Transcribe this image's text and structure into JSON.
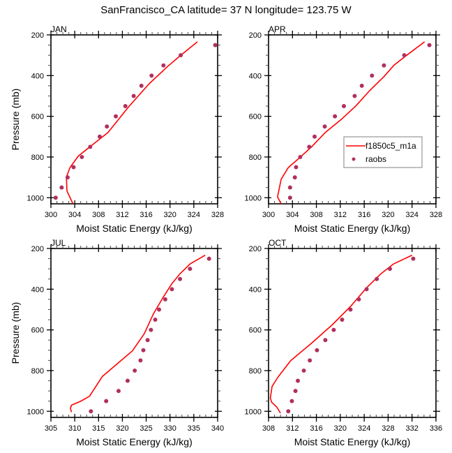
{
  "title": "SanFrancisco_CA  latitude= 37 N longitude= 123.75 W",
  "colors": {
    "model": "#ff0000",
    "obs": "#b03060",
    "frame": "#000000",
    "legend_border": "#808080"
  },
  "chart_data": [
    {
      "type": "line",
      "panel": "JAN",
      "title": "JAN",
      "xlabel": "Moist Static Energy (kJ/kg)",
      "ylabel": "Pressure (mb)",
      "xlim": [
        300,
        328
      ],
      "ylim": [
        1030,
        200
      ],
      "y_reversed": true,
      "xticks": [
        300,
        304,
        308,
        312,
        316,
        320,
        324,
        328
      ],
      "yticks": [
        200,
        400,
        600,
        800,
        1000
      ],
      "legend": null,
      "series": [
        {
          "name": "f1850c5_m1a",
          "kind": "line",
          "x": [
            324.6,
            321.8,
            319.6,
            316.5,
            313.0,
            309.6,
            304.6,
            303.2,
            302.6,
            302.7,
            303.7
          ],
          "y": [
            234,
            300,
            355,
            440,
            555,
            679,
            795,
            852,
            898,
            967,
            1030
          ]
        },
        {
          "name": "raobs",
          "kind": "markers",
          "x": [
            327.6,
            321.8,
            318.9,
            316.9,
            315.2,
            313.9,
            312.5,
            310.9,
            309.4,
            308.2,
            306.6,
            305.2,
            303.8,
            302.8,
            301.8,
            300.8
          ],
          "y": [
            250,
            300,
            350,
            400,
            450,
            500,
            550,
            600,
            650,
            700,
            750,
            800,
            850,
            900,
            950,
            1000
          ]
        }
      ]
    },
    {
      "type": "line",
      "panel": "APR",
      "title": "APR",
      "xlabel": "Moist Static Energy (kJ/kg)",
      "ylabel": "",
      "xlim": [
        300,
        328
      ],
      "ylim": [
        1030,
        200
      ],
      "y_reversed": true,
      "xticks": [
        300,
        304,
        308,
        312,
        316,
        320,
        324,
        328
      ],
      "yticks": [
        200,
        400,
        600,
        800,
        1000
      ],
      "legend": {
        "placement": "center-right",
        "entries": [
          "f1850c5_m1a",
          "raobs"
        ]
      },
      "series": [
        {
          "name": "f1850c5_m1a",
          "kind": "line",
          "x": [
            326.1,
            323.1,
            321.0,
            319.3,
            316.9,
            314.6,
            312.3,
            309.5,
            307.2,
            305.3,
            303.3,
            302.1,
            301.5,
            302.1
          ],
          "y": [
            234,
            300,
            348,
            405,
            474,
            549,
            612,
            679,
            750,
            801,
            852,
            910,
            996,
            1030
          ]
        },
        {
          "name": "raobs",
          "kind": "markers",
          "x": [
            326.9,
            322.7,
            319.3,
            317.3,
            315.6,
            314.4,
            312.6,
            311.1,
            309.4,
            307.7,
            306.8,
            305.3,
            304.6,
            304.4,
            303.6,
            303.6
          ],
          "y": [
            250,
            300,
            350,
            400,
            450,
            500,
            550,
            600,
            650,
            700,
            750,
            800,
            850,
            900,
            950,
            1000
          ]
        }
      ]
    },
    {
      "type": "line",
      "panel": "JUL",
      "title": "JUL",
      "xlabel": "Moist Static Energy (kJ/kg)",
      "ylabel": "Pressure (mb)",
      "xlim": [
        305,
        340
      ],
      "ylim": [
        1030,
        200
      ],
      "y_reversed": true,
      "xticks": [
        305,
        310,
        315,
        320,
        325,
        330,
        335,
        340
      ],
      "yticks": [
        200,
        400,
        600,
        800,
        1000
      ],
      "legend": null,
      "series": [
        {
          "name": "f1850c5_m1a",
          "kind": "line",
          "x": [
            337.4,
            334.2,
            332.1,
            330.4,
            328.5,
            326.5,
            324.6,
            322.1,
            315.8,
            313.1,
            311.2,
            309.3,
            309.1,
            309.3
          ],
          "y": [
            233,
            276,
            324,
            373,
            442,
            522,
            619,
            703,
            829,
            926,
            951,
            970,
            985,
            1004
          ]
        },
        {
          "name": "raobs",
          "kind": "markers",
          "x": [
            338.2,
            334.2,
            332.1,
            330.4,
            329.0,
            327.7,
            326.9,
            326.0,
            325.3,
            324.4,
            323.8,
            322.6,
            321.1,
            319.2,
            316.6,
            313.4
          ],
          "y": [
            250,
            300,
            350,
            400,
            450,
            500,
            550,
            600,
            650,
            700,
            750,
            800,
            850,
            900,
            950,
            1000
          ]
        }
      ]
    },
    {
      "type": "line",
      "panel": "OCT",
      "title": "OCT",
      "xlabel": "Moist Static Energy (kJ/kg)",
      "ylabel": "",
      "xlim": [
        308,
        336
      ],
      "ylim": [
        1030,
        200
      ],
      "y_reversed": true,
      "xticks": [
        308,
        312,
        316,
        320,
        324,
        328,
        332,
        336
      ],
      "yticks": [
        200,
        400,
        600,
        800,
        1000
      ],
      "legend": null,
      "series": [
        {
          "name": "f1850c5_m1a",
          "kind": "line",
          "x": [
            332.0,
            328.9,
            326.8,
            324.5,
            321.8,
            318.7,
            315.2,
            311.7,
            309.6,
            308.6,
            308.3,
            308.5,
            309.4,
            310.0
          ],
          "y": [
            233,
            276,
            324,
            390,
            482,
            574,
            665,
            751,
            831,
            877,
            934,
            955,
            980,
            1009
          ]
        },
        {
          "name": "raobs",
          "kind": "markers",
          "x": [
            332.2,
            328.3,
            326.1,
            324.4,
            323.1,
            321.7,
            320.3,
            318.9,
            317.5,
            316.1,
            314.9,
            313.9,
            312.9,
            312.5,
            311.9,
            311.3
          ],
          "y": [
            250,
            300,
            350,
            400,
            450,
            500,
            550,
            600,
            650,
            700,
            750,
            800,
            850,
            900,
            950,
            1000
          ]
        }
      ]
    }
  ]
}
